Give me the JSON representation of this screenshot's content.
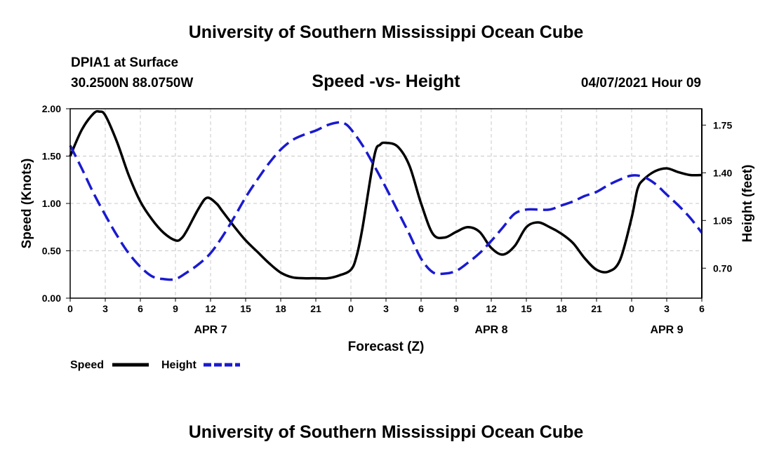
{
  "header": {
    "title": "University of Southern Mississippi Ocean Cube",
    "station": "DPIA1 at Surface",
    "coordinates": "30.2500N  88.0750W",
    "datetime": "04/07/2021 Hour 09"
  },
  "footer": {
    "title": "University of Southern Mississippi Ocean Cube"
  },
  "chart_data": {
    "type": "line",
    "title": "Speed -vs- Height",
    "xlabel": "Forecast (Z)",
    "ylabel": "Speed (Knots)",
    "y2label": "Height (feet)",
    "xlim": [
      0,
      54
    ],
    "ylim": [
      0,
      2
    ],
    "y2lim": [
      0.48,
      1.87
    ],
    "x_ticks": [
      0,
      3,
      6,
      9,
      12,
      15,
      18,
      21,
      24,
      27,
      30,
      33,
      36,
      39,
      42,
      45,
      48,
      51,
      54
    ],
    "x_tick_labels": [
      "0",
      "3",
      "6",
      "9",
      "12",
      "15",
      "18",
      "21",
      "0",
      "3",
      "6",
      "9",
      "12",
      "15",
      "18",
      "21",
      "0",
      "3",
      "6"
    ],
    "y_ticks": [
      0,
      0.5,
      1,
      1.5,
      2
    ],
    "y_tick_labels": [
      "0.00",
      "0.50",
      "1.00",
      "1.50",
      "2.00"
    ],
    "y2_ticks": [
      0.7,
      1.05,
      1.4,
      1.75
    ],
    "y2_tick_labels": [
      "0.70",
      "1.05",
      "1.40",
      "1.75"
    ],
    "day_labels": [
      {
        "x": 12,
        "label": "APR 7"
      },
      {
        "x": 36,
        "label": "APR 8"
      },
      {
        "x": 51,
        "label": "APR 9"
      }
    ],
    "series": [
      {
        "name": "Speed",
        "axis": "left",
        "color": "#000000",
        "style": "solid",
        "x": [
          0,
          1,
          2,
          2.5,
          3,
          4,
          5,
          6,
          7,
          8,
          9,
          9.5,
          10,
          11,
          11.7,
          12.5,
          13,
          14,
          15,
          16,
          17,
          18,
          19,
          20,
          21,
          22,
          23,
          24,
          24.5,
          25,
          26,
          26.5,
          27,
          28,
          29,
          30,
          31,
          32,
          33,
          34,
          35,
          36,
          37,
          38,
          39,
          40,
          41,
          42,
          43,
          44,
          45,
          46,
          47,
          48,
          48.5,
          49,
          50,
          51,
          52,
          53,
          54
        ],
        "values": [
          1.5,
          1.78,
          1.95,
          1.97,
          1.93,
          1.65,
          1.3,
          1.02,
          0.83,
          0.69,
          0.61,
          0.63,
          0.72,
          0.95,
          1.06,
          1.0,
          0.92,
          0.76,
          0.61,
          0.49,
          0.37,
          0.27,
          0.22,
          0.21,
          0.21,
          0.21,
          0.24,
          0.3,
          0.45,
          0.75,
          1.5,
          1.62,
          1.64,
          1.6,
          1.4,
          1.0,
          0.68,
          0.64,
          0.7,
          0.75,
          0.7,
          0.53,
          0.46,
          0.55,
          0.75,
          0.8,
          0.75,
          0.68,
          0.58,
          0.42,
          0.3,
          0.28,
          0.4,
          0.85,
          1.15,
          1.25,
          1.34,
          1.37,
          1.33,
          1.3,
          1.3
        ]
      },
      {
        "name": "Height",
        "axis": "right",
        "color": "#1a1ad0",
        "style": "dashed",
        "x": [
          0,
          1,
          2,
          3,
          4,
          5,
          6,
          7,
          8,
          9,
          10,
          11,
          12,
          13,
          14,
          15,
          16,
          17,
          18,
          19,
          20,
          21,
          22,
          23,
          23.5,
          24,
          25,
          26,
          27,
          28,
          29,
          30,
          31,
          32,
          33,
          34,
          35,
          36,
          37,
          38,
          39,
          40,
          41,
          42,
          43,
          44,
          45,
          46,
          47,
          48,
          49,
          50,
          51,
          52,
          53,
          54
        ],
        "values": [
          1.6,
          1.43,
          1.25,
          1.09,
          0.94,
          0.81,
          0.71,
          0.64,
          0.62,
          0.62,
          0.67,
          0.73,
          0.81,
          0.93,
          1.07,
          1.22,
          1.35,
          1.47,
          1.57,
          1.64,
          1.68,
          1.71,
          1.75,
          1.77,
          1.76,
          1.72,
          1.6,
          1.45,
          1.29,
          1.12,
          0.95,
          0.77,
          0.67,
          0.66,
          0.68,
          0.74,
          0.81,
          0.9,
          1.0,
          1.1,
          1.13,
          1.13,
          1.13,
          1.16,
          1.19,
          1.23,
          1.26,
          1.31,
          1.35,
          1.38,
          1.37,
          1.32,
          1.24,
          1.16,
          1.07,
          0.96
        ]
      }
    ],
    "legend": [
      {
        "label": "Speed",
        "color": "#000000",
        "style": "solid"
      },
      {
        "label": "Height",
        "color": "#1a1ad0",
        "style": "dashed"
      }
    ]
  }
}
